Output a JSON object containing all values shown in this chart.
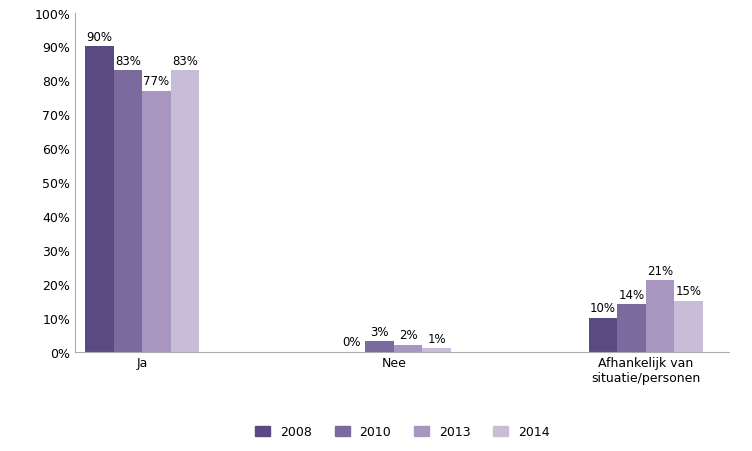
{
  "categories": [
    "Ja",
    "Nee",
    "Afhankelijk van\nsituatie/personen"
  ],
  "series": {
    "2008": [
      90,
      0,
      10
    ],
    "2010": [
      83,
      3,
      14
    ],
    "2013": [
      77,
      2,
      21
    ],
    "2014": [
      83,
      1,
      15
    ]
  },
  "years": [
    "2008",
    "2010",
    "2013",
    "2014"
  ],
  "colors": {
    "2008": "#5B4A82",
    "2010": "#7B6A9E",
    "2013": "#A896C0",
    "2014": "#C8BDD8"
  },
  "ylim": [
    0,
    100
  ],
  "yticks": [
    0,
    10,
    20,
    30,
    40,
    50,
    60,
    70,
    80,
    90,
    100
  ],
  "ytick_labels": [
    "0%",
    "10%",
    "20%",
    "30%",
    "40%",
    "50%",
    "60%",
    "70%",
    "80%",
    "90%",
    "100%"
  ],
  "background_color": "#ffffff",
  "bar_width": 0.17,
  "label_fontsize": 8.5,
  "tick_fontsize": 9,
  "legend_fontsize": 9
}
